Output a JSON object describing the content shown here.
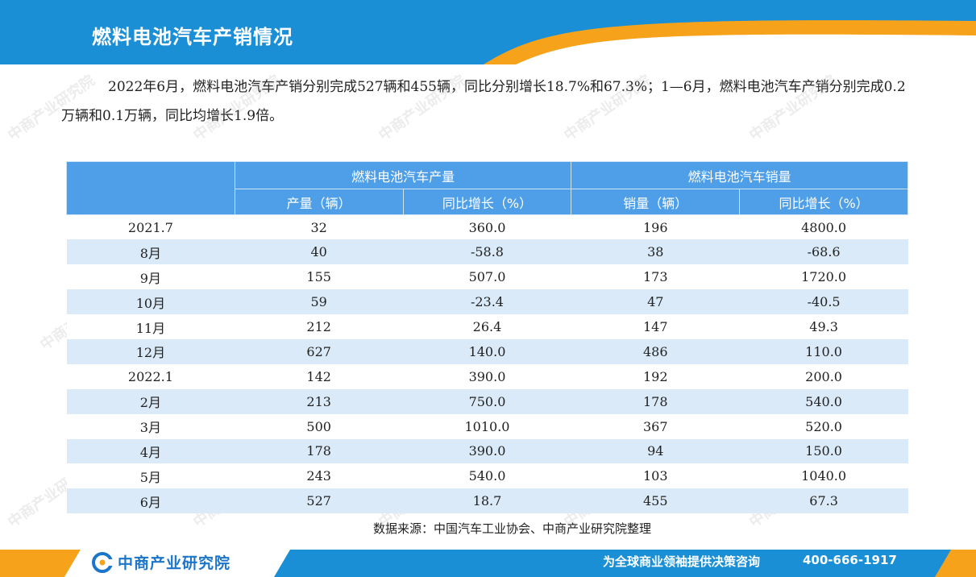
{
  "header": {
    "title": "燃料电池汽车产销情况"
  },
  "paragraph": "2022年6月，燃料电池汽车产销分别完成527辆和455辆，同比分别增长18.7%和67.3%；1—6月，燃料电池汽车产销分别完成0.2万辆和0.1万辆，同比均增长1.9倍。",
  "table": {
    "group_headers": [
      "燃料电池汽车产量",
      "燃料电池汽车销量"
    ],
    "sub_headers": [
      "产量（辆）",
      "同比增长（%）",
      "销量（辆）",
      "同比增长（%）"
    ],
    "rows": [
      {
        "month": "2021.7",
        "prod": "32",
        "prod_yoy": "360.0",
        "sales": "196",
        "sales_yoy": "4800.0"
      },
      {
        "month": "8月",
        "prod": "40",
        "prod_yoy": "-58.8",
        "sales": "38",
        "sales_yoy": "-68.6"
      },
      {
        "month": "9月",
        "prod": "155",
        "prod_yoy": "507.0",
        "sales": "173",
        "sales_yoy": "1720.0"
      },
      {
        "month": "10月",
        "prod": "59",
        "prod_yoy": "-23.4",
        "sales": "47",
        "sales_yoy": "-40.5"
      },
      {
        "month": "11月",
        "prod": "212",
        "prod_yoy": "26.4",
        "sales": "147",
        "sales_yoy": "49.3"
      },
      {
        "month": "12月",
        "prod": "627",
        "prod_yoy": "140.0",
        "sales": "486",
        "sales_yoy": "110.0"
      },
      {
        "month": "2022.1",
        "prod": "142",
        "prod_yoy": "390.0",
        "sales": "192",
        "sales_yoy": "200.0"
      },
      {
        "month": "2月",
        "prod": "213",
        "prod_yoy": "750.0",
        "sales": "178",
        "sales_yoy": "540.0"
      },
      {
        "month": "3月",
        "prod": "500",
        "prod_yoy": "1010.0",
        "sales": "367",
        "sales_yoy": "520.0"
      },
      {
        "month": "4月",
        "prod": "178",
        "prod_yoy": "390.0",
        "sales": "94",
        "sales_yoy": "150.0"
      },
      {
        "month": "5月",
        "prod": "243",
        "prod_yoy": "540.0",
        "sales": "103",
        "sales_yoy": "1040.0"
      },
      {
        "month": "6月",
        "prod": "527",
        "prod_yoy": "18.7",
        "sales": "455",
        "sales_yoy": "67.3"
      }
    ]
  },
  "source": "数据来源：中国汽车工业协会、中商产业研究院整理",
  "footer": {
    "logo_text": "中商产业研究院",
    "slogan": "为全球商业领袖提供决策咨询",
    "phone": "400-666-1917"
  },
  "watermark": "中商产业研究院",
  "colors": {
    "header_blue": "#1a8fd6",
    "accent_orange": "#f7a21b",
    "table_header": "#4f9fe8",
    "row_stripe": "#dbeaf8",
    "logo_blue": "#1c75c8"
  }
}
